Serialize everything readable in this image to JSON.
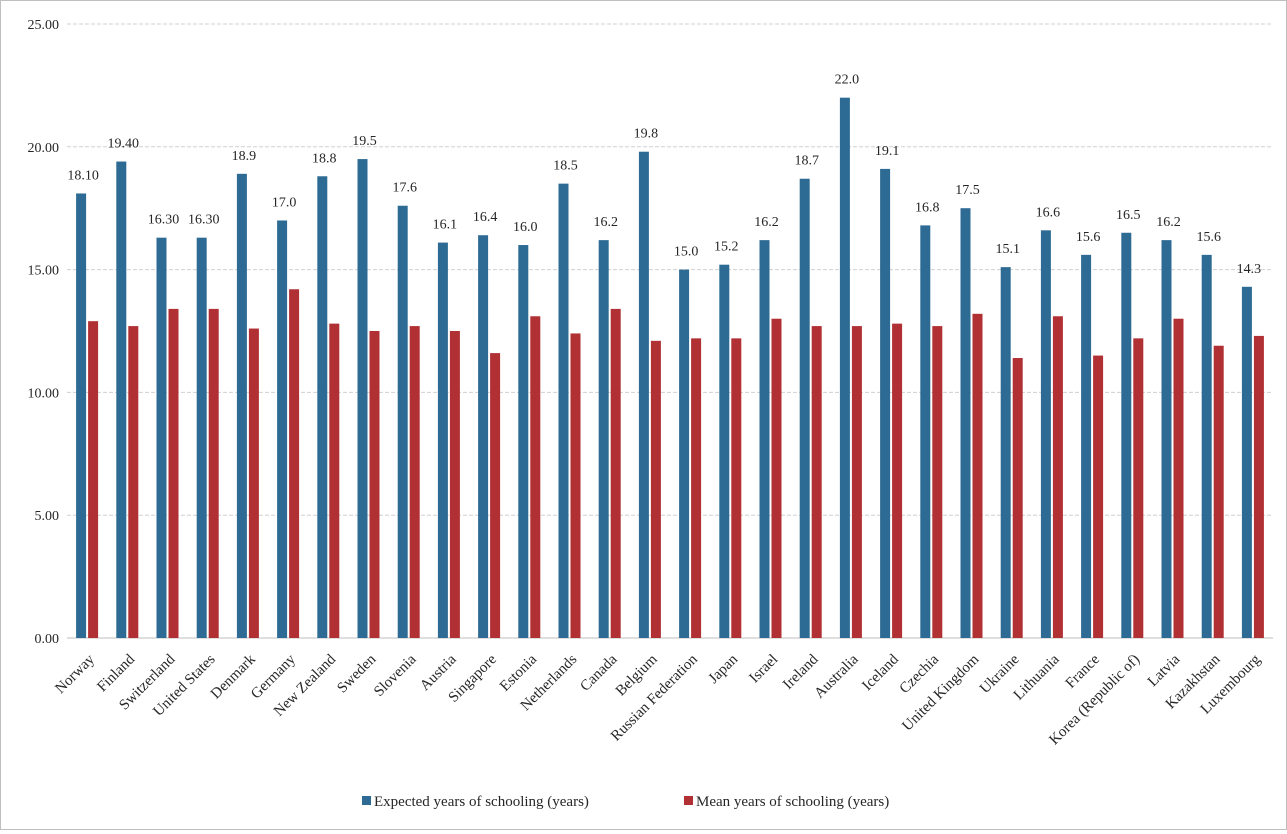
{
  "chart_data": {
    "type": "bar",
    "categories": [
      "Norway",
      "Finland",
      "Switzerland",
      "United States",
      "Denmark",
      "Germany",
      "New Zealand",
      "Sweden",
      "Slovenia",
      "Austria",
      "Singapore",
      "Estonia",
      "Netherlands",
      "Canada",
      "Belgium",
      "Russian Federation",
      "Japan",
      "Israel",
      "Ireland",
      "Australia",
      "Iceland",
      "Czechia",
      "United Kingdom",
      "Ukraine",
      "Lithuania",
      "France",
      "Korea (Republic of)",
      "Latvia",
      "Kazakhstan",
      "Luxembourg"
    ],
    "series": [
      {
        "name": "Expected years of schooling (years)",
        "color": "#2e6b94",
        "values": [
          18.1,
          19.4,
          16.3,
          16.3,
          18.9,
          17.0,
          18.8,
          19.5,
          17.6,
          16.1,
          16.4,
          16.0,
          18.5,
          16.2,
          19.8,
          15.0,
          15.2,
          16.2,
          18.7,
          22.0,
          19.1,
          16.8,
          17.5,
          15.1,
          16.6,
          15.6,
          16.5,
          16.2,
          15.6,
          14.3
        ],
        "labels": [
          "18.10",
          "19.40",
          "16.30",
          "16.30",
          "18.9",
          "17.0",
          "18.8",
          "19.5",
          "17.6",
          "16.1",
          "16.4",
          "16.0",
          "18.5",
          "16.2",
          "19.8",
          "15.0",
          "15.2",
          "16.2",
          "18.7",
          "22.0",
          "19.1",
          "16.8",
          "17.5",
          "15.1",
          "16.6",
          "15.6",
          "16.5",
          "16.2",
          "15.6",
          "14.3"
        ]
      },
      {
        "name": "Mean years of schooling (years)",
        "color": "#b03033",
        "values": [
          12.9,
          12.7,
          13.4,
          13.4,
          12.6,
          14.2,
          12.8,
          12.5,
          12.7,
          12.5,
          11.6,
          13.1,
          12.4,
          13.4,
          12.1,
          12.2,
          12.2,
          13.0,
          12.7,
          12.7,
          12.8,
          12.7,
          13.2,
          11.4,
          13.1,
          11.5,
          12.2,
          13.0,
          11.9,
          12.3
        ]
      }
    ],
    "ylim": [
      0,
      25
    ],
    "yticks": [
      "0.00",
      "5.00",
      "10.00",
      "15.00",
      "20.00",
      "25.00"
    ],
    "grid": true,
    "legend": "bottom"
  }
}
